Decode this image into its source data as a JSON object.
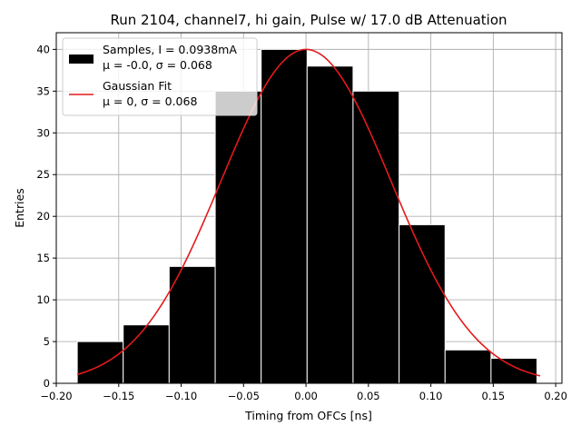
{
  "chart_data": {
    "type": "bar",
    "title": "Run 2104, channel7, hi gain, Pulse w/ 17.0 dB Attenuation",
    "xlabel": "Timing from OFCs [ns]",
    "ylabel": "Entries",
    "xlim": [
      -0.2,
      0.205
    ],
    "ylim": [
      0,
      42
    ],
    "grid": true,
    "legend_position": "upper-left",
    "xticks": [
      -0.2,
      -0.15,
      -0.1,
      -0.05,
      0.0,
      0.05,
      0.1,
      0.15,
      0.2
    ],
    "xtick_labels": [
      "−0.20",
      "−0.15",
      "−0.10",
      "−0.05",
      "0.00",
      "0.05",
      "0.10",
      "0.15",
      "0.20"
    ],
    "yticks": [
      0,
      5,
      10,
      15,
      20,
      25,
      30,
      35,
      40
    ],
    "ytick_labels": [
      "0",
      "5",
      "10",
      "15",
      "20",
      "25",
      "30",
      "35",
      "40"
    ],
    "histogram": {
      "name": "Samples, I = 0.0938mA",
      "stats_label": "μ = -0.0, σ = 0.068",
      "color": "#000000",
      "edge_color": "#ffffff",
      "bin_edges": [
        -0.1832,
        -0.1464,
        -0.1096,
        -0.0727,
        -0.0359,
        0.0009,
        0.0377,
        0.0746,
        0.1114,
        0.1482,
        0.185
      ],
      "counts": [
        5,
        7,
        14,
        35,
        40,
        38,
        35,
        19,
        4,
        3
      ]
    },
    "fit": {
      "name": "Gaussian Fit",
      "stats_label": "μ = 0, σ = 0.068",
      "color": "#e31a1c",
      "mu": 0.0,
      "sigma": 0.068,
      "amplitude": 40.0,
      "x_range": [
        -0.1832,
        0.1875
      ]
    }
  }
}
